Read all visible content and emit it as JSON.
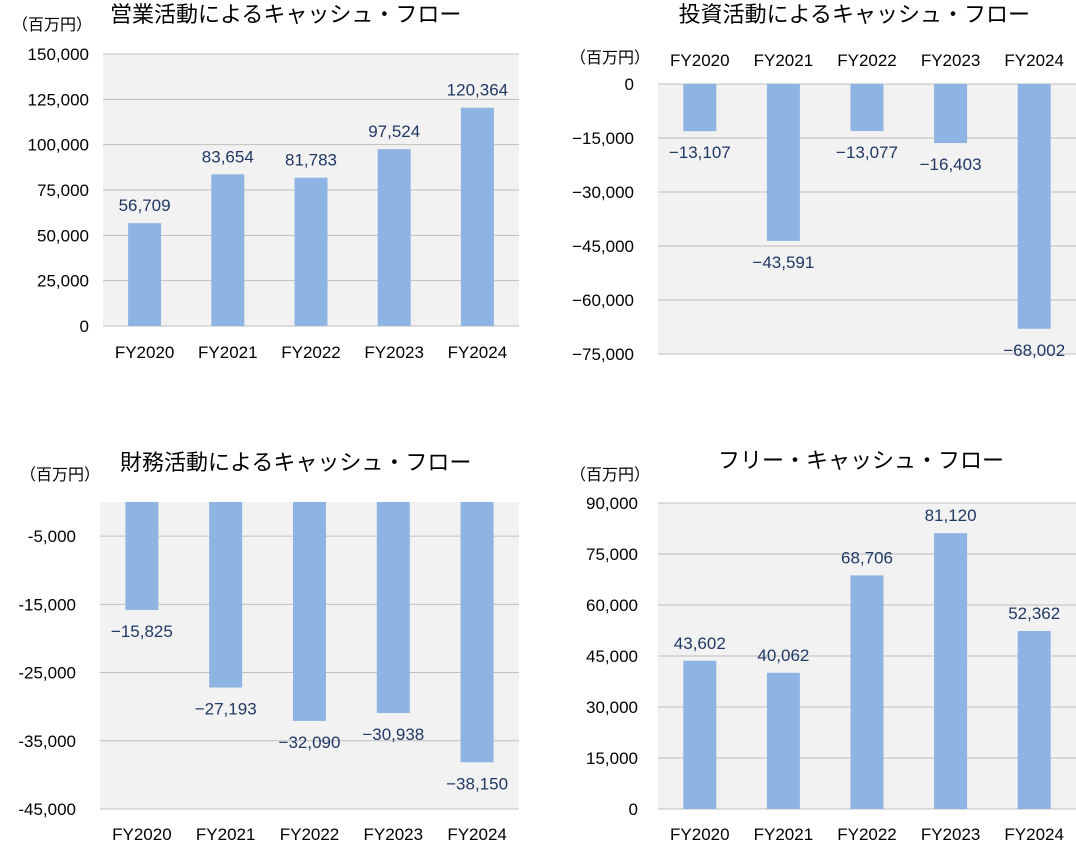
{
  "colors": {
    "bar": "#8eb4e3",
    "plot_bg": "#f2f2f2",
    "grid": "#bfbfbf",
    "label": "#1f3864"
  },
  "chart_data": [
    {
      "type": "bar",
      "title": "営業活動によるキャッシュ・フロー",
      "unit": "（百万円）",
      "categories": [
        "FY2020",
        "FY2021",
        "FY2022",
        "FY2023",
        "FY2024"
      ],
      "values": [
        56709,
        83654,
        81783,
        97524,
        120364
      ],
      "value_labels": [
        "56,709",
        "83,654",
        "81,783",
        "97,524",
        "120,364"
      ],
      "ylim": [
        0,
        150000
      ],
      "yticks": [
        0,
        25000,
        50000,
        75000,
        100000,
        125000,
        150000
      ],
      "ytick_labels": [
        "0",
        "25,000",
        "50,000",
        "75,000",
        "100,000",
        "125,000",
        "150,000"
      ],
      "category_axis": "bottom"
    },
    {
      "type": "bar",
      "title": "投資活動によるキャッシュ・フロー",
      "unit": "（百万円）",
      "categories": [
        "FY2020",
        "FY2021",
        "FY2022",
        "FY2023",
        "FY2024"
      ],
      "values": [
        -13107,
        -43591,
        -13077,
        -16403,
        -68002
      ],
      "value_labels": [
        "−13,107",
        "−43,591",
        "−13,077",
        "−16,403",
        "−68,002"
      ],
      "ylim": [
        -75000,
        0
      ],
      "yticks": [
        0,
        -15000,
        -30000,
        -45000,
        -60000,
        -75000
      ],
      "ytick_labels": [
        "0",
        "−15,000",
        "−30,000",
        "−45,000",
        "−60,000",
        "−75,000"
      ],
      "category_axis": "top"
    },
    {
      "type": "bar",
      "title": "財務活動によるキャッシュ・フロー",
      "unit": "（百万円）",
      "categories": [
        "FY2020",
        "FY2021",
        "FY2022",
        "FY2023",
        "FY2024"
      ],
      "values": [
        -15825,
        -27193,
        -32090,
        -30938,
        -38150
      ],
      "value_labels": [
        "−15,825",
        "−27,193",
        "−32,090",
        "−30,938",
        "−38,150"
      ],
      "ylim": [
        -45000,
        0
      ],
      "yticks": [
        -5000,
        -15000,
        -25000,
        -35000,
        -45000
      ],
      "ytick_labels": [
        "-5,000",
        "-15,000",
        "-25,000",
        "-35,000",
        "-45,000"
      ],
      "category_axis": "bottom"
    },
    {
      "type": "bar",
      "title": "フリー・キャッシュ・フロー",
      "unit": "（百万円）",
      "categories": [
        "FY2020",
        "FY2021",
        "FY2022",
        "FY2023",
        "FY2024"
      ],
      "values": [
        43602,
        40062,
        68706,
        81120,
        52362
      ],
      "value_labels": [
        "43,602",
        "40,062",
        "68,706",
        "81,120",
        "52,362"
      ],
      "ylim": [
        0,
        90000
      ],
      "yticks": [
        0,
        15000,
        30000,
        45000,
        60000,
        75000,
        90000
      ],
      "ytick_labels": [
        "0",
        "15,000",
        "30,000",
        "45,000",
        "60,000",
        "75,000",
        "90,000"
      ],
      "category_axis": "bottom"
    }
  ]
}
